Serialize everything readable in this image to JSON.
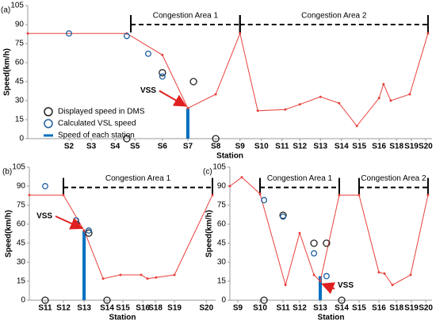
{
  "chart_data": [
    {
      "type": "line",
      "panel": "(a)",
      "xlabel": "Station",
      "ylabel": "Speed(km/h)",
      "xlim": [
        0,
        100
      ],
      "ylim": [
        0,
        105
      ],
      "yticks": [
        0,
        15,
        30,
        45,
        60,
        75,
        90,
        105
      ],
      "xticks": [
        {
          "value": 10.2,
          "label": "S2"
        },
        {
          "value": 15.7,
          "label": "S3"
        },
        {
          "value": 21.6,
          "label": "S4"
        },
        {
          "value": 26.5,
          "label": "S5"
        },
        {
          "value": 33.3,
          "label": "S6"
        },
        {
          "value": 39.6,
          "label": "S7"
        },
        {
          "value": 46.5,
          "label": "S8"
        },
        {
          "value": 52.5,
          "label": "S9"
        },
        {
          "value": 57.8,
          "label": "S10"
        },
        {
          "value": 62.9,
          "label": "S11"
        },
        {
          "value": 67.3,
          "label": "S12"
        },
        {
          "value": 72.4,
          "label": "S13"
        },
        {
          "value": 77.6,
          "label": "S14"
        },
        {
          "value": 82,
          "label": "S15"
        },
        {
          "value": 86.9,
          "label": "S16"
        },
        {
          "value": 91.2,
          "label": "S18"
        },
        {
          "value": 94.9,
          "label": "S19"
        },
        {
          "value": 98.4,
          "label": "S20"
        }
      ],
      "line": {
        "color": "#e8413c",
        "x": [
          0,
          24.5,
          33.3,
          39.6,
          46.5,
          52.5,
          56.9,
          63.7,
          67.3,
          72.4,
          77,
          81.4,
          86.9,
          88,
          89.8,
          94.5,
          99
        ],
        "values": [
          83,
          83,
          66,
          24,
          35,
          83,
          22,
          23,
          27,
          33,
          28,
          10,
          32,
          43,
          30,
          35,
          83
        ]
      },
      "series": [
        {
          "name": "Displayed speed in DMS",
          "color": "#222222",
          "x": [
            24.5,
            33.3,
            41,
            46.5
          ],
          "values": [
            0,
            52,
            45,
            0
          ]
        },
        {
          "name": "Calculated VSL speed",
          "color": "#1f5f9e",
          "x": [
            29.8,
            33.3,
            24.5,
            10.2
          ],
          "values": [
            67,
            49,
            81,
            83
          ]
        }
      ],
      "bar": {
        "name": "Speed of each station",
        "color": "#0070c0",
        "x": 39.6,
        "value": 24
      },
      "annotation": "VSS",
      "legend": "lower left",
      "congestion": [
        {
          "label": "Congestion Area 1",
          "x": [
            25.5,
            52.5
          ],
          "y": 90
        },
        {
          "label": "Congestion Area 2",
          "x": [
            52.5,
            99
          ],
          "y": 90
        }
      ]
    },
    {
      "type": "line",
      "panel": "(b)",
      "xlabel": "Station",
      "ylabel": "Speed(km/h)",
      "xlim": [
        0,
        100
      ],
      "ylim": [
        0,
        105
      ],
      "yticks": [
        0,
        15,
        30,
        45,
        60,
        75,
        90,
        105
      ],
      "xticks": [
        {
          "value": 8.5,
          "label": "S11"
        },
        {
          "value": 18.3,
          "label": "S12"
        },
        {
          "value": 29.4,
          "label": "S13"
        },
        {
          "value": 41.7,
          "label": "S14"
        },
        {
          "value": 50.2,
          "label": "S15"
        },
        {
          "value": 60.9,
          "label": "S16"
        },
        {
          "value": 67.7,
          "label": "S18"
        },
        {
          "value": 77.9,
          "label": "S19"
        },
        {
          "value": 95,
          "label": "S20"
        }
      ],
      "line": {
        "color": "#e8413c",
        "x": [
          0,
          18.3,
          29.4,
          39.6,
          48.9,
          60,
          63.4,
          68.1,
          77.9,
          98.3
        ],
        "values": [
          83,
          83,
          55,
          17,
          20,
          20,
          17,
          18,
          20,
          83
        ]
      },
      "series": [
        {
          "color": "#222222",
          "x": [
            25.1,
            31.9,
            8.5,
            41.7
          ],
          "values": [
            60,
            53,
            0,
            0
          ]
        },
        {
          "color": "#1f5f9e",
          "x": [
            25.1,
            31.9,
            8.5
          ],
          "values": [
            63,
            55,
            90
          ]
        }
      ],
      "bar": {
        "color": "#0070c0",
        "x": 29.4,
        "value": 55
      },
      "annotation": "VSS",
      "congestion": [
        {
          "label": "Congestion Area 1",
          "x": [
            18.3,
            98.3
          ],
          "y": 89
        }
      ]
    },
    {
      "type": "line",
      "panel": "(c)",
      "xlabel": "Station",
      "ylabel": "Speed(km/h)",
      "xlim": [
        0,
        100
      ],
      "ylim": [
        0,
        105
      ],
      "yticks": [
        0,
        15,
        30,
        45,
        60,
        75,
        90,
        105
      ],
      "xticks": [
        {
          "value": 3.9,
          "label": "S9"
        },
        {
          "value": 14.9,
          "label": "S10"
        },
        {
          "value": 26.3,
          "label": "S11"
        },
        {
          "value": 34.5,
          "label": "S12"
        },
        {
          "value": 44.7,
          "label": "S13"
        },
        {
          "value": 55.3,
          "label": "S14"
        },
        {
          "value": 63.9,
          "label": "S15"
        },
        {
          "value": 73.7,
          "label": "S16"
        },
        {
          "value": 82.4,
          "label": "S18"
        },
        {
          "value": 89.8,
          "label": "S19"
        },
        {
          "value": 96.9,
          "label": "S20"
        }
      ],
      "line": {
        "color": "#e8413c",
        "x": [
          0,
          5.9,
          14.9,
          27.5,
          34.5,
          41.6,
          44.7,
          54.1,
          63.9,
          73.7,
          76.5,
          80.4,
          89.4,
          98
        ],
        "values": [
          90,
          97,
          84,
          12,
          53,
          20,
          15,
          83,
          83,
          22,
          21,
          12,
          20,
          83
        ]
      },
      "series": [
        {
          "color": "#222222",
          "x": [
            26.3,
            41.6,
            47.8,
            55.3,
            16.9
          ],
          "values": [
            67,
            45,
            45,
            0,
            0
          ]
        },
        {
          "color": "#1f5f9e",
          "x": [
            26.3,
            41.6,
            47.8,
            16.9
          ],
          "values": [
            66,
            37,
            19,
            79
          ]
        }
      ],
      "bar": {
        "color": "#0070c0",
        "x": 44.7,
        "value": 19
      },
      "annotation": "VSS",
      "congestion": [
        {
          "label": "Congestion Area 1",
          "x": [
            14.9,
            54.1
          ],
          "y": 89
        },
        {
          "label": "Congestion Area 2",
          "x": [
            63.9,
            98
          ],
          "y": 89
        }
      ]
    }
  ]
}
